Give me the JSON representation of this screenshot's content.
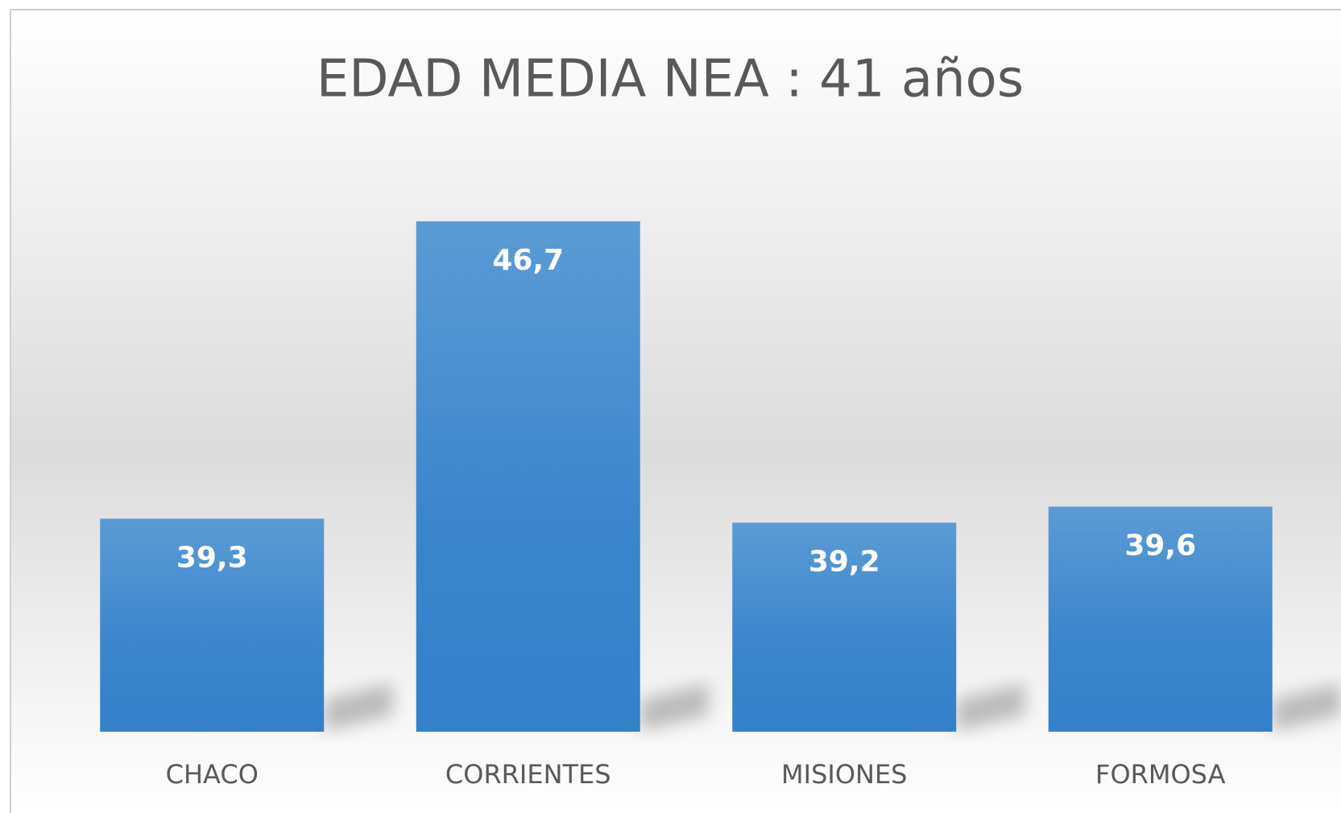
{
  "chart_data": {
    "type": "bar",
    "title": "EDAD MEDIA NEA : 41 años",
    "categories": [
      "CHACO",
      "CORRIENTES",
      "MISIONES",
      "FORMOSA"
    ],
    "values": [
      39.3,
      46.7,
      39.2,
      39.6
    ],
    "value_labels": [
      "39,3",
      "46,7",
      "39,2",
      "39,6"
    ],
    "color": "#4a8fd3",
    "ylim": [
      34,
      48
    ]
  }
}
